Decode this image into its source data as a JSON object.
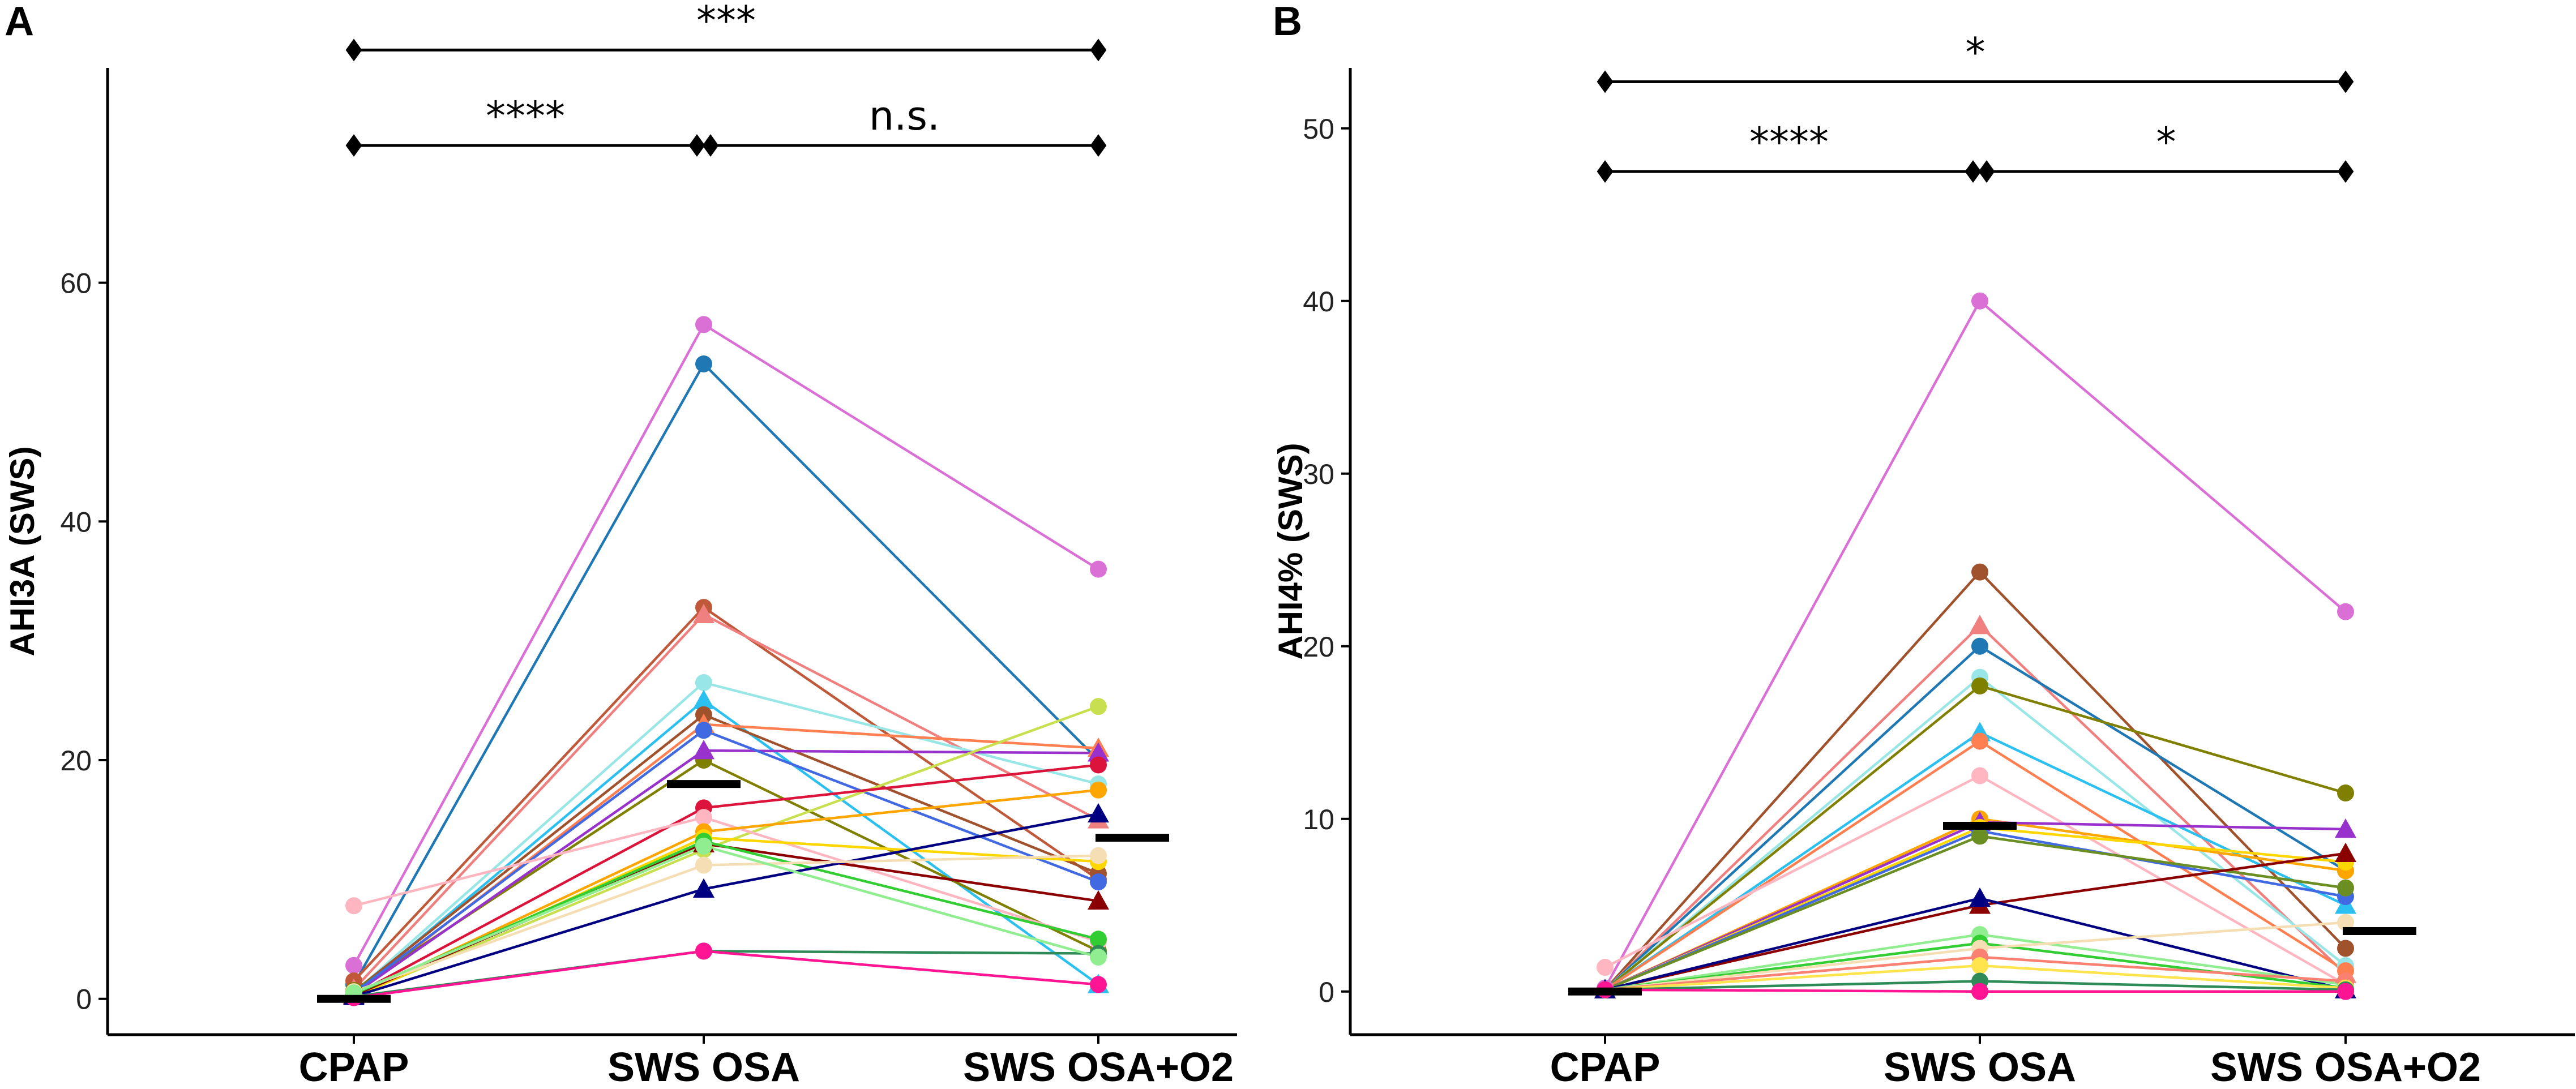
{
  "chart_data": [
    {
      "panel": "A",
      "type": "line",
      "ylabel": "AHI3A (SWS)",
      "xlabel": "",
      "categories": [
        "CPAP",
        "SWS OSA",
        "SWS OSA+O2"
      ],
      "ylim": [
        -3,
        78
      ],
      "yticks": [
        0,
        20,
        40,
        60
      ],
      "medians": [
        0,
        18,
        13.5
      ],
      "significance": [
        {
          "from": 0,
          "to": 2,
          "label": "***",
          "y": 79.5
        },
        {
          "from": 0,
          "to": 1,
          "label": "****",
          "y": 71.5
        },
        {
          "from": 1,
          "to": 2,
          "label": "n.s.",
          "y": 71.5
        }
      ],
      "series": [
        {
          "color": "#da70d6",
          "marker": "circle",
          "values": [
            2.8,
            56.5,
            36
          ]
        },
        {
          "color": "#1f77b4",
          "marker": "circle",
          "values": [
            1.2,
            53.2,
            20
          ]
        },
        {
          "color": "#c0583a",
          "marker": "circle",
          "values": [
            1.5,
            32.8,
            10
          ]
        },
        {
          "color": "#f08080",
          "marker": "triangle",
          "values": [
            0.8,
            32.2,
            15
          ]
        },
        {
          "color": "#98e6e6",
          "marker": "circle",
          "values": [
            0.5,
            26.5,
            18
          ]
        },
        {
          "color": "#2bc0ef",
          "marker": "triangle",
          "values": [
            0.4,
            25,
            1.2
          ]
        },
        {
          "color": "#a0522d",
          "marker": "circle",
          "values": [
            0.6,
            23.8,
            10.5
          ]
        },
        {
          "color": "#ff7f50",
          "marker": "triangle",
          "values": [
            0.3,
            23,
            21
          ]
        },
        {
          "color": "#808000",
          "marker": "circle",
          "values": [
            0.7,
            20,
            4
          ]
        },
        {
          "color": "#9932cc",
          "marker": "triangle",
          "values": [
            0.4,
            20.8,
            20.6
          ]
        },
        {
          "color": "#4169e1",
          "marker": "circle",
          "values": [
            0.5,
            22.5,
            9.8
          ]
        },
        {
          "color": "#c8e050",
          "marker": "circle",
          "values": [
            0.2,
            12.5,
            24.5
          ]
        },
        {
          "color": "#dc143c",
          "marker": "circle",
          "values": [
            0.3,
            16,
            19.6
          ]
        },
        {
          "color": "#ffb6c1",
          "marker": "circle",
          "values": [
            7.8,
            15.2,
            4.8
          ]
        },
        {
          "color": "#ffa500",
          "marker": "circle",
          "values": [
            0.2,
            14,
            17.5
          ]
        },
        {
          "color": "#ffd700",
          "marker": "circle",
          "values": [
            0.1,
            13.5,
            11.5
          ]
        },
        {
          "color": "#8b0000",
          "marker": "triangle",
          "values": [
            0.3,
            13,
            8.2
          ]
        },
        {
          "color": "#32cd32",
          "marker": "circle",
          "values": [
            0.4,
            13.2,
            5
          ]
        },
        {
          "color": "#000080",
          "marker": "triangle",
          "values": [
            0.2,
            9.2,
            15.5
          ]
        },
        {
          "color": "#f5deb3",
          "marker": "circle",
          "values": [
            0.6,
            11.2,
            12
          ]
        },
        {
          "color": "#2e8b57",
          "marker": "circle",
          "values": [
            0.2,
            4,
            3.8
          ]
        },
        {
          "color": "#ff1493",
          "marker": "circle",
          "values": [
            0.1,
            4,
            1.2
          ]
        },
        {
          "color": "#90ee90",
          "marker": "circle",
          "values": [
            0.5,
            12.8,
            3.5
          ]
        }
      ]
    },
    {
      "panel": "B",
      "type": "line",
      "ylabel": "AHI4% (SWS)",
      "xlabel": "",
      "categories": [
        "CPAP",
        "SWS OSA",
        "SWS OSA+O2"
      ],
      "ylim": [
        -2.5,
        53.5
      ],
      "yticks": [
        0,
        10,
        20,
        30,
        40,
        50
      ],
      "medians": [
        0,
        9.6,
        3.5
      ],
      "significance": [
        {
          "from": 0,
          "to": 2,
          "label": "*",
          "y": 52.7
        },
        {
          "from": 0,
          "to": 1,
          "label": "****",
          "y": 47.5
        },
        {
          "from": 1,
          "to": 2,
          "label": "*",
          "y": 47.5
        }
      ],
      "series": [
        {
          "color": "#da70d6",
          "marker": "circle",
          "values": [
            0.2,
            40,
            22
          ]
        },
        {
          "color": "#a0522d",
          "marker": "circle",
          "values": [
            0.1,
            24.3,
            2.5
          ]
        },
        {
          "color": "#f08080",
          "marker": "triangle",
          "values": [
            0.1,
            21.2,
            1
          ]
        },
        {
          "color": "#1f77b4",
          "marker": "circle",
          "values": [
            0.1,
            20,
            7
          ]
        },
        {
          "color": "#98e6e6",
          "marker": "circle",
          "values": [
            0.1,
            18.2,
            1.5
          ]
        },
        {
          "color": "#808000",
          "marker": "circle",
          "values": [
            0.1,
            17.7,
            11.5
          ]
        },
        {
          "color": "#2bc0ef",
          "marker": "triangle",
          "values": [
            0.1,
            15,
            5
          ]
        },
        {
          "color": "#ff7f50",
          "marker": "circle",
          "values": [
            0.1,
            14.5,
            1.2
          ]
        },
        {
          "color": "#ffb6c1",
          "marker": "circle",
          "values": [
            1.4,
            12.5,
            0.4
          ]
        },
        {
          "color": "#ffa500",
          "marker": "circle",
          "values": [
            0.1,
            10,
            7
          ]
        },
        {
          "color": "#9932cc",
          "marker": "triangle",
          "values": [
            0.1,
            9.8,
            9.4
          ]
        },
        {
          "color": "#ffd700",
          "marker": "circle",
          "values": [
            0.1,
            9.5,
            7.5
          ]
        },
        {
          "color": "#4169e1",
          "marker": "circle",
          "values": [
            0.1,
            9.3,
            5.5
          ]
        },
        {
          "color": "#6b8e23",
          "marker": "circle",
          "values": [
            0.1,
            9,
            6
          ]
        },
        {
          "color": "#8b0000",
          "marker": "triangle",
          "values": [
            0.1,
            5,
            8
          ]
        },
        {
          "color": "#000080",
          "marker": "triangle",
          "values": [
            0.1,
            5.4,
            0.1
          ]
        },
        {
          "color": "#90ee90",
          "marker": "circle",
          "values": [
            0.1,
            3.3,
            0.4
          ]
        },
        {
          "color": "#32cd32",
          "marker": "circle",
          "values": [
            0.1,
            2.8,
            0.2
          ]
        },
        {
          "color": "#f5deb3",
          "marker": "circle",
          "values": [
            0.1,
            2.5,
            4
          ]
        },
        {
          "color": "#fa8072",
          "marker": "circle",
          "values": [
            0.1,
            2,
            0.6
          ]
        },
        {
          "color": "#ffe44d",
          "marker": "circle",
          "values": [
            0.1,
            1.5,
            0.2
          ]
        },
        {
          "color": "#2e8b57",
          "marker": "circle",
          "values": [
            0.1,
            0.6,
            0.1
          ]
        },
        {
          "color": "#ff1493",
          "marker": "circle",
          "values": [
            0.1,
            0,
            0
          ]
        }
      ]
    }
  ]
}
